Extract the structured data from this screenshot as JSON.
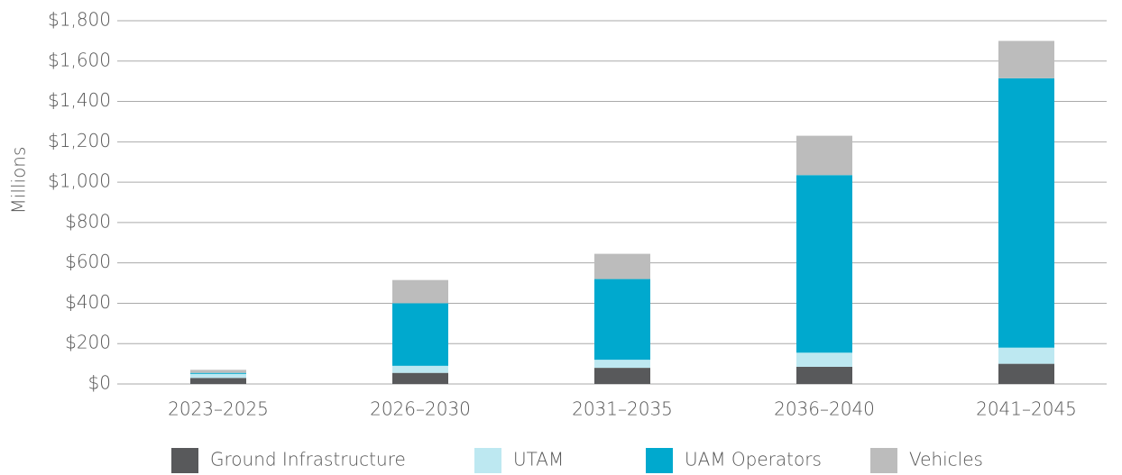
{
  "chart_data": {
    "type": "stacked_bar",
    "y_label": "Millions",
    "categories": [
      "2023–2025",
      "2026–2030",
      "2031–2035",
      "2036–2040",
      "2041–2045"
    ],
    "series": [
      {
        "name": "Ground Infrastructure",
        "color": "#58595b",
        "values": [
          30,
          55,
          80,
          85,
          100
        ]
      },
      {
        "name": "UTAM",
        "color": "#bde8f1",
        "values": [
          20,
          35,
          40,
          70,
          80
        ]
      },
      {
        "name": "UAM Operators",
        "color": "#00a9ce",
        "values": [
          5,
          310,
          400,
          880,
          1335
        ]
      },
      {
        "name": "Vehicles",
        "color": "#bcbcbc",
        "values": [
          15,
          115,
          125,
          195,
          185
        ]
      }
    ],
    "ylim": [
      0,
      1800
    ],
    "yticks": [
      {
        "value": 0,
        "label": "$0"
      },
      {
        "value": 200,
        "label": "$200"
      },
      {
        "value": 400,
        "label": "$400"
      },
      {
        "value": 600,
        "label": "$600"
      },
      {
        "value": 800,
        "label": "$800"
      },
      {
        "value": 1000,
        "label": "$1,000"
      },
      {
        "value": 1200,
        "label": "$1,200"
      },
      {
        "value": 1400,
        "label": "$1,400"
      },
      {
        "value": 1600,
        "label": "$1,600"
      },
      {
        "value": 1800,
        "label": "$1,800"
      }
    ],
    "grid": true,
    "legend": "bottom"
  }
}
